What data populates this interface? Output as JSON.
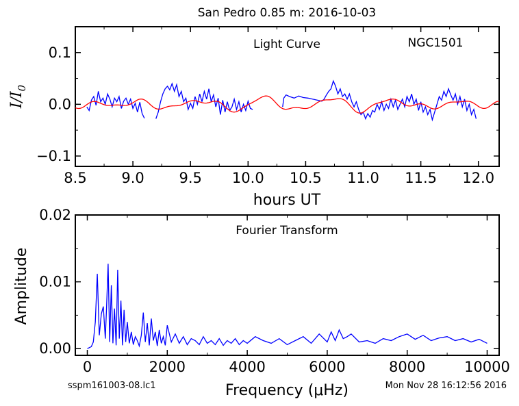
{
  "figure": {
    "title": "San Pedro 0.85 m:  2016-10-03",
    "footer_left": "sspm161003-08.lc1",
    "footer_right": "Mon Nov 28 16:12:56 2016",
    "colors": {
      "data": "#0000ff",
      "fit": "#ff0000",
      "axes": "#000000"
    }
  },
  "chart_data": [
    {
      "type": "line",
      "name": "light-curve",
      "annotation": "Light Curve",
      "object": "NGC1501",
      "xlabel": "hours UT",
      "ylabel": "I/I0",
      "xlim": [
        8.5,
        12.18
      ],
      "ylim": [
        -0.12,
        0.15
      ],
      "xticks": [
        "8.5",
        "9.0",
        "9.5",
        "10.0",
        "10.5",
        "11.0",
        "11.5",
        "12.0"
      ],
      "yticks": [
        "0.1",
        "0.0",
        "−0.1"
      ],
      "xtick_values": [
        8.5,
        9.0,
        9.5,
        10.0,
        10.5,
        11.0,
        11.5,
        12.0
      ],
      "ytick_values": [
        0.1,
        0.0,
        -0.1
      ],
      "series": [
        {
          "color": "#0000ff",
          "segments": [
            [
              [
                8.6,
                -0.005
              ],
              [
                8.62,
                -0.012
              ],
              [
                8.64,
                0.008
              ],
              [
                8.66,
                0.015
              ],
              [
                8.68,
                -0.002
              ],
              [
                8.7,
                0.025
              ],
              [
                8.72,
                0.005
              ],
              [
                8.74,
                0.012
              ],
              [
                8.76,
                0.0
              ],
              [
                8.78,
                0.02
              ],
              [
                8.8,
                0.01
              ],
              [
                8.82,
                -0.005
              ],
              [
                8.84,
                0.012
              ],
              [
                8.86,
                0.005
              ],
              [
                8.88,
                0.015
              ],
              [
                8.9,
                -0.008
              ],
              [
                8.92,
                0.006
              ],
              [
                8.94,
                0.012
              ],
              [
                8.96,
                0.0
              ],
              [
                8.98,
                0.01
              ],
              [
                9.0,
                -0.008
              ],
              [
                9.02,
                0.002
              ],
              [
                9.04,
                -0.015
              ],
              [
                9.06,
                0.004
              ],
              [
                9.08,
                -0.018
              ],
              [
                9.1,
                -0.027
              ]
            ],
            [
              [
                9.2,
                -0.028
              ],
              [
                9.22,
                -0.015
              ],
              [
                9.24,
                0.005
              ],
              [
                9.26,
                0.02
              ],
              [
                9.28,
                0.03
              ],
              [
                9.3,
                0.035
              ],
              [
                9.32,
                0.028
              ],
              [
                9.34,
                0.04
              ],
              [
                9.36,
                0.025
              ],
              [
                9.38,
                0.038
              ],
              [
                9.4,
                0.015
              ],
              [
                9.42,
                0.025
              ],
              [
                9.44,
                0.005
              ],
              [
                9.46,
                0.012
              ],
              [
                9.48,
                -0.01
              ],
              [
                9.5,
                0.002
              ],
              [
                9.52,
                -0.008
              ],
              [
                9.54,
                0.015
              ],
              [
                9.56,
                0.0
              ],
              [
                9.58,
                0.02
              ],
              [
                9.6,
                0.005
              ],
              [
                9.62,
                0.025
              ],
              [
                9.64,
                0.01
              ],
              [
                9.66,
                0.03
              ],
              [
                9.68,
                0.005
              ],
              [
                9.7,
                0.018
              ],
              [
                9.72,
                -0.005
              ],
              [
                9.74,
                0.012
              ],
              [
                9.76,
                -0.02
              ],
              [
                9.78,
                0.008
              ],
              [
                9.8,
                -0.015
              ],
              [
                9.82,
                0.005
              ],
              [
                9.84,
                -0.012
              ],
              [
                9.86,
                -0.005
              ],
              [
                9.88,
                0.01
              ],
              [
                9.9,
                -0.01
              ],
              [
                9.92,
                0.005
              ],
              [
                9.94,
                -0.015
              ],
              [
                9.96,
                0.0
              ],
              [
                9.98,
                -0.012
              ],
              [
                10.0,
                0.006
              ],
              [
                10.02,
                -0.008
              ],
              [
                10.04,
                -0.01
              ]
            ],
            [
              [
                10.3,
                -0.005
              ],
              [
                10.31,
                0.012
              ],
              [
                10.33,
                0.018
              ],
              [
                10.36,
                0.015
              ],
              [
                10.4,
                0.012
              ],
              [
                10.44,
                0.016
              ],
              [
                10.48,
                0.013
              ],
              [
                10.52,
                0.012
              ],
              [
                10.56,
                0.01
              ],
              [
                10.6,
                0.008
              ],
              [
                10.64,
                0.006
              ],
              [
                10.66,
                0.01
              ],
              [
                10.68,
                0.018
              ],
              [
                10.7,
                0.025
              ],
              [
                10.72,
                0.03
              ],
              [
                10.74,
                0.045
              ],
              [
                10.76,
                0.035
              ],
              [
                10.78,
                0.02
              ],
              [
                10.8,
                0.03
              ],
              [
                10.82,
                0.015
              ],
              [
                10.84,
                0.02
              ],
              [
                10.86,
                0.01
              ],
              [
                10.88,
                0.02
              ],
              [
                10.9,
                0.005
              ],
              [
                10.92,
                -0.005
              ],
              [
                10.94,
                0.005
              ],
              [
                10.96,
                -0.01
              ],
              [
                10.98,
                -0.02
              ],
              [
                11.0,
                -0.015
              ],
              [
                11.02,
                -0.028
              ],
              [
                11.04,
                -0.018
              ],
              [
                11.06,
                -0.025
              ],
              [
                11.08,
                -0.012
              ],
              [
                11.1,
                -0.015
              ],
              [
                11.12,
                0.0
              ],
              [
                11.14,
                -0.01
              ],
              [
                11.16,
                0.005
              ],
              [
                11.18,
                -0.012
              ],
              [
                11.2,
                0.0
              ],
              [
                11.22,
                -0.008
              ],
              [
                11.24,
                0.01
              ],
              [
                11.26,
                -0.005
              ],
              [
                11.28,
                0.008
              ],
              [
                11.3,
                -0.01
              ],
              [
                11.32,
                0.0
              ],
              [
                11.34,
                0.01
              ],
              [
                11.36,
                -0.005
              ],
              [
                11.38,
                0.015
              ],
              [
                11.4,
                0.005
              ],
              [
                11.42,
                0.02
              ],
              [
                11.44,
                0.0
              ],
              [
                11.46,
                0.01
              ],
              [
                11.48,
                -0.012
              ],
              [
                11.5,
                0.005
              ],
              [
                11.52,
                -0.015
              ],
              [
                11.54,
                -0.005
              ],
              [
                11.56,
                -0.02
              ],
              [
                11.58,
                -0.01
              ],
              [
                11.6,
                -0.03
              ],
              [
                11.62,
                -0.015
              ],
              [
                11.64,
                0.0
              ],
              [
                11.66,
                0.015
              ],
              [
                11.68,
                0.008
              ],
              [
                11.7,
                0.025
              ],
              [
                11.72,
                0.015
              ],
              [
                11.74,
                0.03
              ],
              [
                11.76,
                0.018
              ],
              [
                11.78,
                0.008
              ],
              [
                11.8,
                0.02
              ],
              [
                11.82,
                0.0
              ],
              [
                11.84,
                0.015
              ],
              [
                11.86,
                -0.005
              ],
              [
                11.88,
                0.01
              ],
              [
                11.9,
                -0.012
              ],
              [
                11.92,
                0.0
              ],
              [
                11.94,
                -0.02
              ],
              [
                11.96,
                -0.01
              ],
              [
                11.98,
                -0.028
              ]
            ]
          ]
        },
        {
          "color": "#ff0000",
          "x_range": [
            8.5,
            12.18
          ],
          "step": 0.01,
          "model": [
            {
              "amp": 0.006,
              "period_h": 0.61,
              "phase_h": 8.75
            },
            {
              "amp": 0.006,
              "period_h": 0.52,
              "phase_h": 9.0
            },
            {
              "amp": 0.004,
              "period_h": 0.35,
              "phase_h": 8.62
            },
            {
              "amp": 0.003,
              "period_h": 0.22,
              "phase_h": 8.59
            }
          ]
        }
      ]
    },
    {
      "type": "line",
      "name": "fourier-transform",
      "annotation": "Fourier Transform",
      "xlabel": "Frequency (μHz)",
      "ylabel": "Amplitude",
      "xlim": [
        -300,
        10300
      ],
      "ylim": [
        -0.001,
        0.02
      ],
      "xticks": [
        "0",
        "2000",
        "4000",
        "6000",
        "8000",
        "10000"
      ],
      "yticks": [
        "0.02",
        "0.01",
        "0.00"
      ],
      "xtick_values": [
        0,
        2000,
        4000,
        6000,
        8000,
        10000
      ],
      "ytick_values": [
        0.02,
        0.01,
        0.0
      ],
      "series": [
        {
          "color": "#0000ff",
          "x": [
            0,
            100,
            150,
            200,
            250,
            300,
            350,
            400,
            450,
            480,
            520,
            560,
            600,
            640,
            680,
            720,
            760,
            800,
            840,
            880,
            920,
            960,
            1000,
            1050,
            1100,
            1150,
            1200,
            1250,
            1300,
            1350,
            1400,
            1450,
            1500,
            1550,
            1600,
            1650,
            1700,
            1750,
            1800,
            1850,
            1900,
            1950,
            2000,
            2100,
            2200,
            2300,
            2400,
            2500,
            2600,
            2700,
            2800,
            2900,
            3000,
            3100,
            3200,
            3300,
            3400,
            3500,
            3600,
            3700,
            3800,
            3900,
            4000,
            4200,
            4400,
            4600,
            4800,
            5000,
            5200,
            5400,
            5600,
            5800,
            6000,
            6100,
            6200,
            6300,
            6400,
            6500,
            6600,
            6800,
            7000,
            7200,
            7400,
            7600,
            7800,
            8000,
            8200,
            8400,
            8600,
            8800,
            9000,
            9200,
            9400,
            9600,
            9800,
            10000
          ],
          "y": [
            0.0,
            0.0003,
            0.001,
            0.004,
            0.0112,
            0.002,
            0.0052,
            0.0063,
            0.0015,
            0.0058,
            0.0127,
            0.001,
            0.0095,
            0.0008,
            0.006,
            0.0005,
            0.0118,
            0.0015,
            0.0072,
            0.0005,
            0.0058,
            0.001,
            0.004,
            0.0008,
            0.0025,
            0.0006,
            0.0018,
            0.0012,
            0.0004,
            0.002,
            0.0054,
            0.001,
            0.0038,
            0.0005,
            0.0045,
            0.0012,
            0.0025,
            0.0004,
            0.0028,
            0.0008,
            0.0018,
            0.0005,
            0.0035,
            0.001,
            0.0022,
            0.0008,
            0.0018,
            0.0006,
            0.0015,
            0.0012,
            0.0006,
            0.0018,
            0.0008,
            0.0012,
            0.0006,
            0.0015,
            0.0005,
            0.0012,
            0.0008,
            0.0015,
            0.0006,
            0.0012,
            0.0008,
            0.0018,
            0.0012,
            0.0008,
            0.0015,
            0.0006,
            0.0012,
            0.0018,
            0.0008,
            0.0022,
            0.001,
            0.0025,
            0.0012,
            0.0028,
            0.0015,
            0.0018,
            0.0022,
            0.001,
            0.0012,
            0.0008,
            0.0015,
            0.0012,
            0.0018,
            0.0022,
            0.0014,
            0.002,
            0.0012,
            0.0016,
            0.0018,
            0.0012,
            0.0015,
            0.001,
            0.0014,
            0.0008
          ]
        }
      ]
    }
  ]
}
